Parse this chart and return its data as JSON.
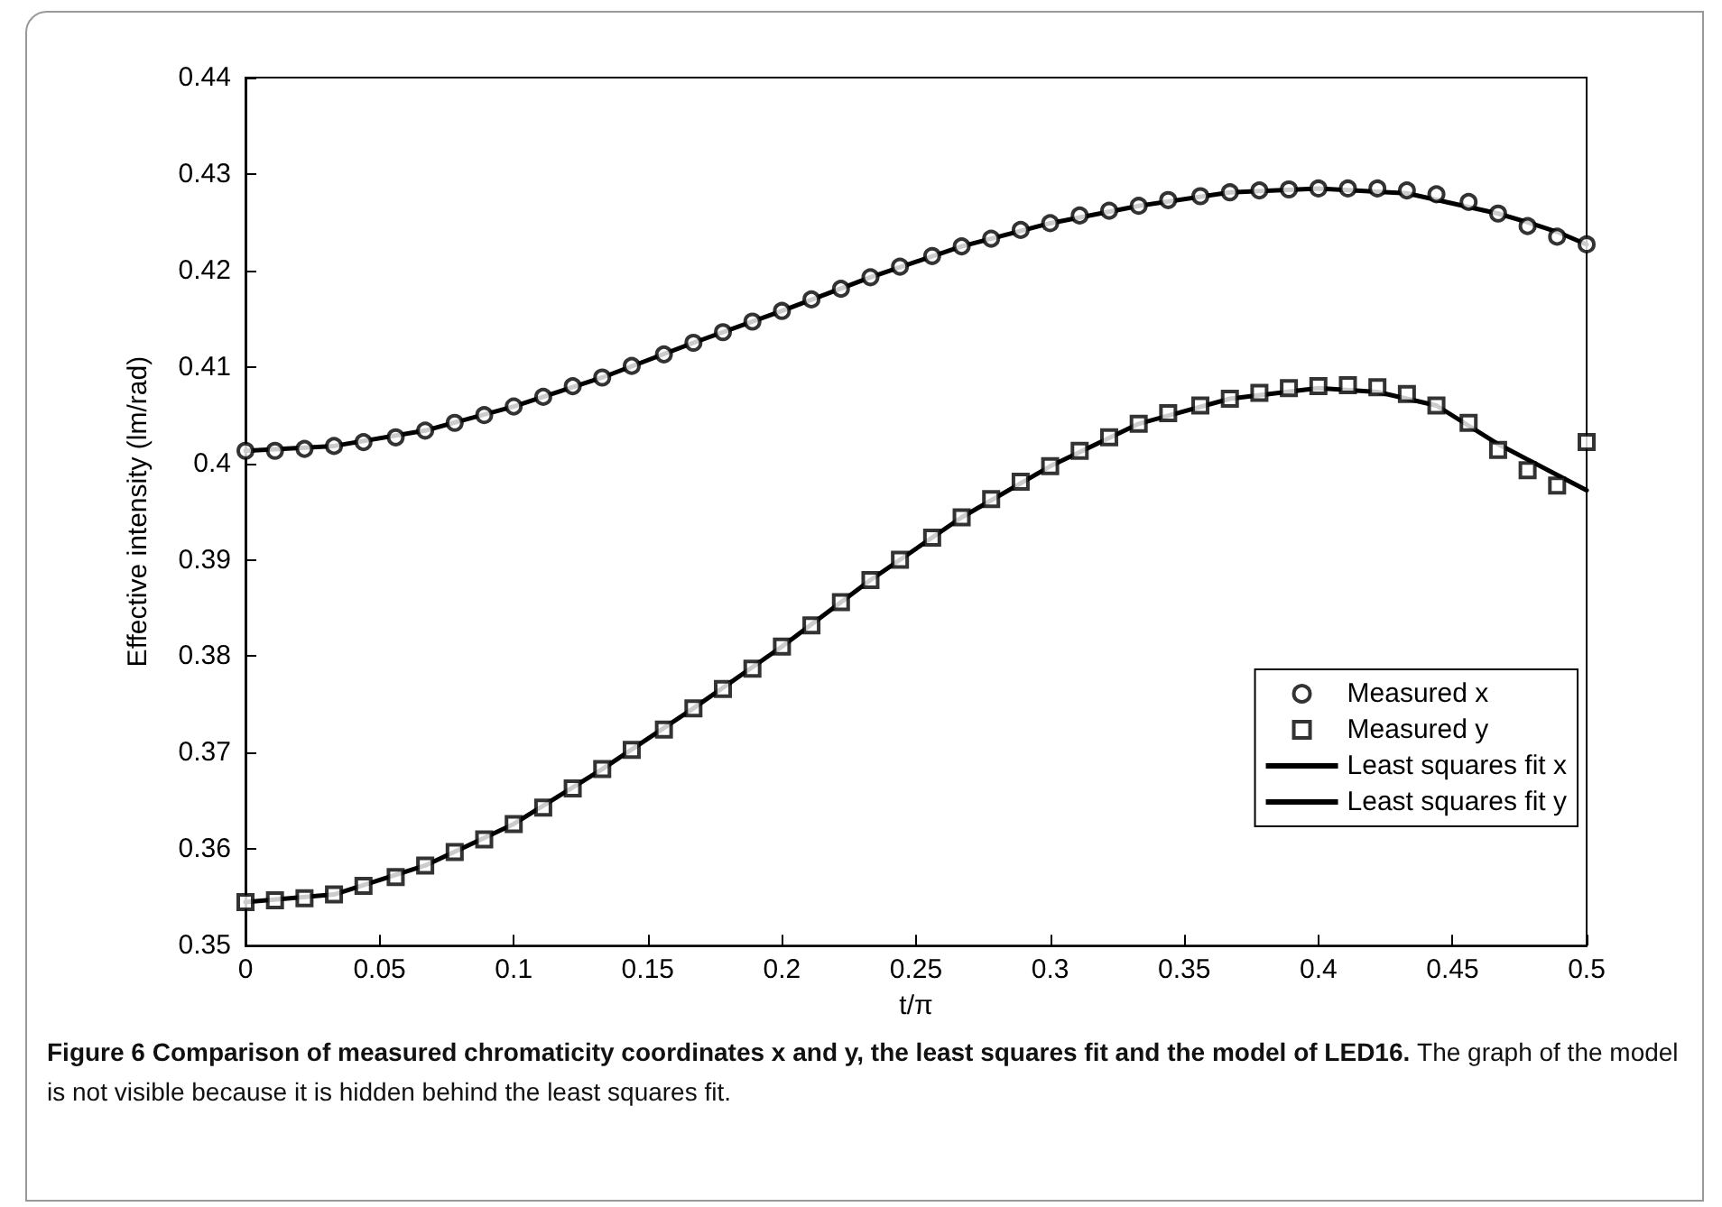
{
  "chart_data": {
    "type": "line",
    "xlabel": "t/π",
    "ylabel": "Effective intensity (lm/rad)",
    "xlim": [
      0,
      0.5
    ],
    "xticks": [
      0,
      0.05,
      0.1,
      0.15,
      0.2,
      0.25,
      0.3,
      0.35,
      0.4,
      0.45,
      0.5
    ],
    "ylim": [
      0.35,
      0.44
    ],
    "yticks": [
      0.35,
      0.36,
      0.37,
      0.38,
      0.39,
      0.4,
      0.41,
      0.42,
      0.43,
      0.44
    ],
    "grid": false,
    "legend": "bottom right",
    "x": [
      0,
      0.011,
      0.022,
      0.033,
      0.044,
      0.056,
      0.067,
      0.078,
      0.089,
      0.1,
      0.111,
      0.122,
      0.133,
      0.144,
      0.156,
      0.167,
      0.178,
      0.189,
      0.2,
      0.211,
      0.222,
      0.233,
      0.244,
      0.256,
      0.267,
      0.278,
      0.289,
      0.3,
      0.311,
      0.322,
      0.333,
      0.344,
      0.356,
      0.367,
      0.378,
      0.389,
      0.4,
      0.411,
      0.422,
      0.433,
      0.444,
      0.456,
      0.467,
      0.478,
      0.489,
      0.5
    ],
    "series": [
      {
        "name": "Measured x",
        "type": "scatter",
        "marker": "circle",
        "color": "#000000",
        "values": [
          0.4013,
          0.4013,
          0.4015,
          0.4018,
          0.4022,
          0.4027,
          0.4034,
          0.4042,
          0.405,
          0.4059,
          0.4069,
          0.408,
          0.4089,
          0.4101,
          0.4113,
          0.4125,
          0.4136,
          0.4147,
          0.4158,
          0.417,
          0.4181,
          0.4193,
          0.4204,
          0.4215,
          0.4225,
          0.4233,
          0.4242,
          0.4249,
          0.4257,
          0.4262,
          0.4267,
          0.4273,
          0.4277,
          0.4281,
          0.4283,
          0.4284,
          0.4285,
          0.4285,
          0.4285,
          0.4283,
          0.4279,
          0.4271,
          0.4259,
          0.4246,
          0.4235,
          0.4227
        ]
      },
      {
        "name": "Measured y",
        "type": "scatter",
        "marker": "square",
        "color": "#000000",
        "values": [
          0.3545,
          0.3547,
          0.3549,
          0.3553,
          0.3562,
          0.3571,
          0.3583,
          0.3597,
          0.361,
          0.3626,
          0.3643,
          0.3663,
          0.3683,
          0.3703,
          0.3724,
          0.3746,
          0.3766,
          0.3787,
          0.381,
          0.3832,
          0.3856,
          0.3879,
          0.39,
          0.3923,
          0.3944,
          0.3963,
          0.3981,
          0.3997,
          0.4013,
          0.4027,
          0.4041,
          0.4052,
          0.406,
          0.4067,
          0.4073,
          0.4078,
          0.408,
          0.4081,
          0.4079,
          0.4072,
          0.406,
          0.4042,
          0.4014,
          0.3993,
          0.3977,
          0.4022
        ]
      },
      {
        "name": "Least squares fit x",
        "marker": "none",
        "line_style": "solid",
        "color": "#000000",
        "x": [
          0,
          0.033,
          0.067,
          0.1,
          0.133,
          0.167,
          0.2,
          0.233,
          0.267,
          0.3,
          0.333,
          0.367,
          0.4,
          0.433,
          0.467,
          0.478,
          0.489,
          0.5
        ],
        "values": [
          0.4013,
          0.4018,
          0.4034,
          0.4059,
          0.4089,
          0.4125,
          0.4158,
          0.4193,
          0.4225,
          0.4249,
          0.4267,
          0.4281,
          0.4285,
          0.428,
          0.4259,
          0.425,
          0.424,
          0.4227
        ]
      },
      {
        "name": "Least squares fit y",
        "marker": "none",
        "line_style": "solid",
        "color": "#000000",
        "x": [
          0,
          0.033,
          0.067,
          0.1,
          0.133,
          0.167,
          0.2,
          0.233,
          0.267,
          0.3,
          0.333,
          0.367,
          0.4,
          0.422,
          0.444,
          0.467,
          0.478,
          0.489,
          0.5
        ],
        "values": [
          0.3545,
          0.3553,
          0.3583,
          0.3626,
          0.3683,
          0.3746,
          0.381,
          0.3879,
          0.3944,
          0.3997,
          0.4041,
          0.4067,
          0.4078,
          0.4074,
          0.406,
          0.402,
          0.4004,
          0.3988,
          0.3972
        ]
      }
    ],
    "annotations": [
      "Figure 6  Comparison of measured chromaticity coordinates x and y, the least squares fit and the model of LED16.",
      "The graph of the model is not visible because it is hidden behind the least squares fit."
    ]
  }
}
